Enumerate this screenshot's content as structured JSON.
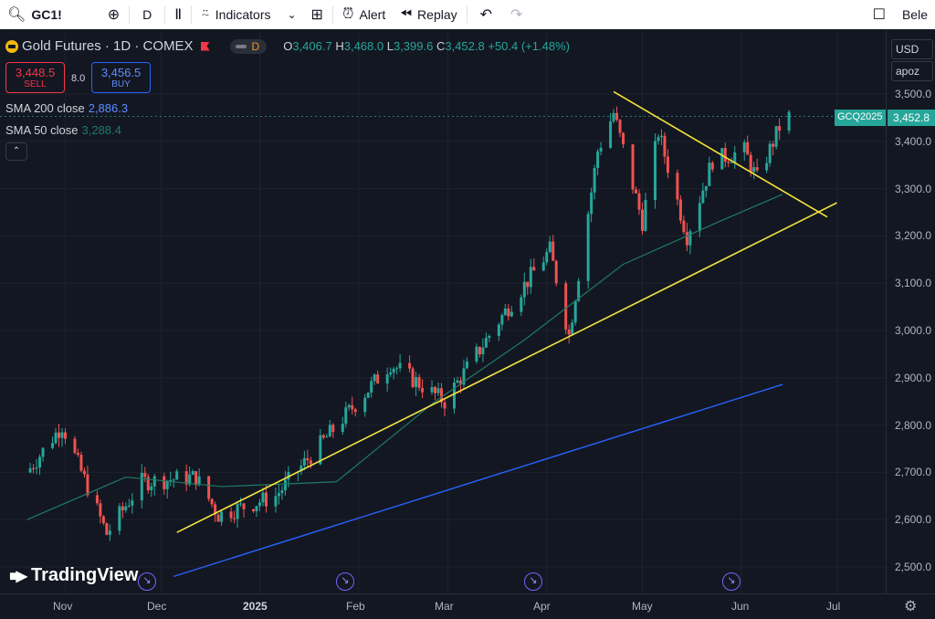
{
  "toolbar": {
    "symbol": "GC1!",
    "interval": "D",
    "indicators_label": "Indicators",
    "alert_label": "Alert",
    "replay_label": "Replay",
    "right_label": "Bele"
  },
  "legend": {
    "title": "Gold Futures · 1D · COMEX",
    "d_badge": "D",
    "o_key": "O",
    "o_val": "3,406.7",
    "h_key": "H",
    "h_val": "3,468.0",
    "l_key": "L",
    "l_val": "3,399.6",
    "c_key": "C",
    "c_val": "3,452.8",
    "change": "+50.4 (+1.48%)"
  },
  "trade": {
    "sell_price": "3,448.5",
    "sell_label": "SELL",
    "spread": "8.0",
    "buy_price": "3,456.5",
    "buy_label": "BUY"
  },
  "indicators": {
    "sma200_label": "SMA 200 close",
    "sma200_value": "2,886.3",
    "sma50_label": "SMA 50 close",
    "sma50_value": "3,288.4"
  },
  "price_axis": {
    "currency": "USD",
    "scale_mode": "apoz",
    "ticks": [
      "3,500.0",
      "3,400.0",
      "3,300.0",
      "3,200.0",
      "3,100.0",
      "3,000.0",
      "2,900.0",
      "2,800.0",
      "2,700.0",
      "2,600.0",
      "2,500.0"
    ],
    "last_price": "3,452.8",
    "contract": "GCQ2025"
  },
  "time_axis": {
    "ticks": [
      "Nov",
      "Dec",
      "2025",
      "Feb",
      "Mar",
      "Apr",
      "May",
      "Jun",
      "Jul"
    ]
  },
  "watermark": "TradingView",
  "colors": {
    "up": "#26a69a",
    "down": "#ef5350",
    "sma200": "#2962ff",
    "sma50": "#1f7a64",
    "trendline": "#f5e23a",
    "background": "#131722"
  },
  "chart_data": {
    "type": "candlestick",
    "title": "Gold Futures · 1D · COMEX",
    "y_range": [
      2480,
      3530
    ],
    "x_range": [
      "2024-10-20",
      "2025-07-05"
    ],
    "series": [
      {
        "name": "SMA 200 close",
        "start": [
          "2024-12-05",
          2480
        ],
        "end": [
          "2025-06-14",
          2886
        ]
      },
      {
        "name": "SMA 50 close",
        "points": [
          [
            "2024-10-20",
            2600
          ],
          [
            "2024-11-20",
            2690
          ],
          [
            "2024-12-20",
            2670
          ],
          [
            "2025-01-25",
            2680
          ],
          [
            "2025-02-25",
            2850
          ],
          [
            "2025-03-25",
            2980
          ],
          [
            "2025-04-25",
            3140
          ],
          [
            "2025-05-25",
            3230
          ],
          [
            "2025-06-14",
            3288
          ]
        ]
      }
    ],
    "trendlines": [
      {
        "name": "support",
        "from": [
          "2024-12-06",
          2573
        ],
        "to": [
          "2025-07-01",
          3270
        ]
      },
      {
        "name": "resistance",
        "from": [
          "2025-04-22",
          3505
        ],
        "to": [
          "2025-06-28",
          3240
        ]
      }
    ],
    "last_close": 3452.8
  }
}
